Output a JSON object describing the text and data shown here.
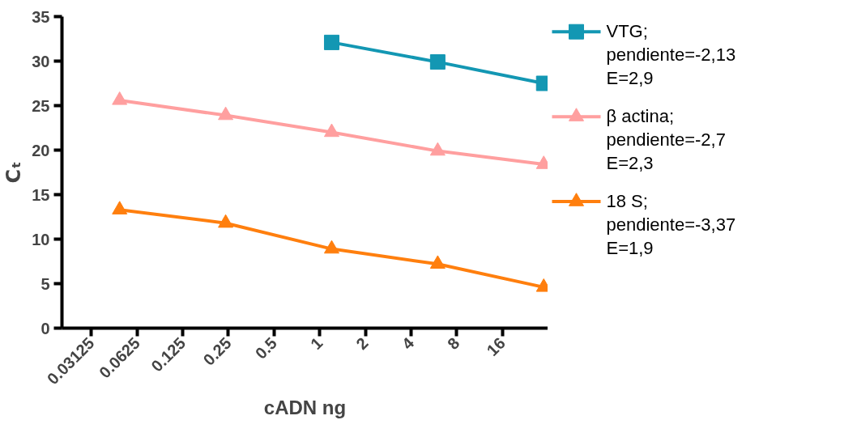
{
  "chart_data": {
    "type": "line",
    "xlabel": "cADN ng",
    "ylabel": "Cₜ",
    "log": "x",
    "xlim": [
      0.02,
      32
    ],
    "ylim": [
      0,
      35
    ],
    "xticks": [
      0.03125,
      0.0625,
      0.125,
      0.25,
      0.5,
      1,
      2,
      4,
      8,
      16
    ],
    "yticks": [
      0,
      5,
      10,
      15,
      20,
      25,
      30,
      35
    ],
    "grid": false,
    "legend": "right",
    "line_style": "solid",
    "x": [
      0.048,
      0.24,
      1.2,
      6,
      30
    ],
    "series": [
      {
        "name": "VTG;\npendiente=-2,13\nE=2,9",
        "color": "#1397b3",
        "marker": "square",
        "values": [
          null,
          null,
          32.1,
          29.9,
          27.5
        ]
      },
      {
        "name": "β actina;\npendiente=-2,7\nE=2,3",
        "color": "#ff9f9f",
        "marker": "triangle",
        "values": [
          25.6,
          23.9,
          22.0,
          19.9,
          18.4
        ]
      },
      {
        "name": "18 S;\npendiente=-3,37\nE=1,9",
        "color": "#ff7f0e",
        "marker": "triangle",
        "values": [
          13.3,
          11.8,
          8.9,
          7.2,
          4.6
        ]
      }
    ]
  }
}
